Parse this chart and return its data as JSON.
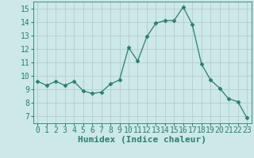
{
  "xlabel": "Humidex (Indice chaleur)",
  "x_values": [
    0,
    1,
    2,
    3,
    4,
    5,
    6,
    7,
    8,
    9,
    10,
    11,
    12,
    13,
    14,
    15,
    16,
    17,
    18,
    19,
    20,
    21,
    22,
    23
  ],
  "y_values": [
    9.6,
    9.3,
    9.6,
    9.3,
    9.6,
    8.9,
    8.7,
    8.8,
    9.4,
    9.7,
    12.1,
    11.1,
    12.9,
    13.9,
    14.1,
    14.1,
    15.1,
    13.8,
    10.9,
    9.7,
    9.1,
    8.3,
    8.1,
    6.9
  ],
  "line_color": "#2e7d6e",
  "marker": "D",
  "marker_size": 2.5,
  "bg_color": "#cce8e8",
  "grid_color": "#b0c8c8",
  "ylim": [
    6.5,
    15.5
  ],
  "yticks": [
    7,
    8,
    9,
    10,
    11,
    12,
    13,
    14,
    15
  ],
  "xlim": [
    -0.5,
    23.5
  ],
  "xticks": [
    0,
    1,
    2,
    3,
    4,
    5,
    6,
    7,
    8,
    9,
    10,
    11,
    12,
    13,
    14,
    15,
    16,
    17,
    18,
    19,
    20,
    21,
    22,
    23
  ],
  "tick_color": "#2e7d6e",
  "label_color": "#2e7d6e",
  "font_size": 7.0,
  "xlabel_fontsize": 8.0
}
